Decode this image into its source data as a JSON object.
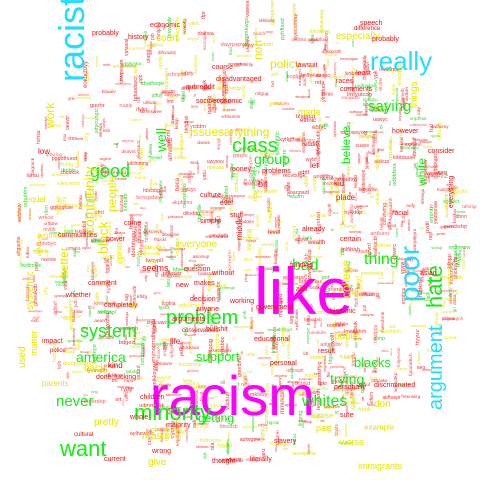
{
  "colors": {
    "magenta": "#ff00ff",
    "cyan": "#22ddff",
    "green": "#11ee11",
    "yellow": "#e6e600",
    "red": "#ee1111"
  },
  "words": [
    {
      "text": "racism",
      "color": "magenta"
    },
    {
      "text": "like",
      "color": "magenta"
    },
    {
      "text": "racist",
      "color": "cyan"
    },
    {
      "text": "really",
      "color": "cyan"
    },
    {
      "text": "poor",
      "color": "cyan"
    },
    {
      "text": "argument",
      "color": "cyan"
    },
    {
      "text": "minority",
      "color": "green"
    },
    {
      "text": "problem",
      "color": "green"
    },
    {
      "text": "want",
      "color": "green"
    },
    {
      "text": "hate",
      "color": "green"
    },
    {
      "text": "system",
      "color": "green"
    },
    {
      "text": "class",
      "color": "green"
    },
    {
      "text": "whites",
      "color": "green"
    },
    {
      "text": "good",
      "color": "green"
    },
    {
      "text": "bad",
      "color": "green"
    },
    {
      "text": "never",
      "color": "green"
    },
    {
      "text": "america",
      "color": "green"
    },
    {
      "text": "well",
      "color": "green"
    },
    {
      "text": "thing",
      "color": "green"
    },
    {
      "text": "support",
      "color": "green"
    },
    {
      "text": "saying",
      "color": "green"
    },
    {
      "text": "trying",
      "color": "green"
    },
    {
      "text": "group",
      "color": "green"
    },
    {
      "text": "getting",
      "color": "green"
    },
    {
      "text": "blacks",
      "color": "green"
    },
    {
      "text": "believe",
      "color": "green"
    },
    {
      "text": "white",
      "color": "green"
    },
    {
      "text": "community",
      "color": "yellow"
    },
    {
      "text": "black",
      "color": "yellow"
    },
    {
      "text": "work",
      "color": "yellow"
    },
    {
      "text": "people",
      "color": "yellow"
    },
    {
      "text": "better",
      "color": "yellow"
    },
    {
      "text": "policy",
      "color": "yellow"
    },
    {
      "text": "anything",
      "color": "yellow"
    },
    {
      "text": "college",
      "color": "yellow"
    },
    {
      "text": "issues",
      "color": "yellow"
    },
    {
      "text": "non",
      "color": "yellow"
    },
    {
      "text": "public",
      "color": "yellow"
    },
    {
      "text": "systemic",
      "color": "yellow"
    },
    {
      "text": "used",
      "color": "yellow"
    },
    {
      "text": "pretty",
      "color": "yellow"
    },
    {
      "text": "give",
      "color": "yellow"
    },
    {
      "text": "reason",
      "color": "yellow"
    },
    {
      "text": "things",
      "color": "yellow"
    },
    {
      "text": "everyone",
      "color": "yellow"
    },
    {
      "text": "back",
      "color": "yellow"
    },
    {
      "text": "women",
      "color": "yellow"
    },
    {
      "text": "equal",
      "color": "yellow"
    },
    {
      "text": "parents",
      "color": "yellow"
    },
    {
      "text": "court",
      "color": "yellow"
    },
    {
      "text": "especially",
      "color": "yellow"
    },
    {
      "text": "worse",
      "color": "yellow"
    },
    {
      "text": "immigrants",
      "color": "yellow"
    },
    {
      "text": "example",
      "color": "yellow"
    },
    {
      "text": "opinions",
      "color": "yellow"
    },
    {
      "text": "part",
      "color": "yellow"
    },
    {
      "text": "made",
      "color": "yellow"
    },
    {
      "text": "mean",
      "color": "yellow"
    },
    {
      "text": "don",
      "color": "yellow"
    },
    {
      "text": "sense",
      "color": "yellow"
    },
    {
      "text": "matter",
      "color": "yellow"
    },
    {
      "text": "kind",
      "color": "red"
    },
    {
      "text": "life",
      "color": "red"
    },
    {
      "text": "seems",
      "color": "red"
    },
    {
      "text": "bit",
      "color": "red"
    },
    {
      "text": "low",
      "color": "red"
    },
    {
      "text": "economic",
      "color": "red"
    },
    {
      "text": "history",
      "color": "red"
    },
    {
      "text": "money",
      "color": "red"
    },
    {
      "text": "government",
      "color": "red"
    },
    {
      "text": "comments",
      "color": "red"
    },
    {
      "text": "however",
      "color": "red"
    },
    {
      "text": "culture",
      "color": "red"
    },
    {
      "text": "simply",
      "color": "red"
    },
    {
      "text": "arguments",
      "color": "red"
    },
    {
      "text": "decision",
      "color": "red"
    },
    {
      "text": "makes",
      "color": "red"
    },
    {
      "text": "new",
      "color": "red"
    },
    {
      "text": "middle",
      "color": "red"
    },
    {
      "text": "anyone",
      "color": "red"
    },
    {
      "text": "without",
      "color": "red"
    },
    {
      "text": "already",
      "color": "red"
    },
    {
      "text": "place",
      "color": "red"
    },
    {
      "text": "let",
      "color": "red"
    },
    {
      "text": "kid",
      "color": "red"
    },
    {
      "text": "races",
      "color": "red"
    },
    {
      "text": "least",
      "color": "red"
    },
    {
      "text": "lawsuit",
      "color": "red"
    },
    {
      "text": "speech",
      "color": "red"
    },
    {
      "text": "problems",
      "color": "red"
    },
    {
      "text": "disadvantaged",
      "color": "red"
    },
    {
      "text": "subreddit",
      "color": "red"
    },
    {
      "text": "socioeconomic",
      "color": "red"
    },
    {
      "text": "completely",
      "color": "red"
    },
    {
      "text": "communities",
      "color": "red"
    },
    {
      "text": "comment",
      "color": "red"
    },
    {
      "text": "personally",
      "color": "red"
    },
    {
      "text": "thought",
      "color": "red"
    },
    {
      "text": "slavery",
      "color": "red"
    },
    {
      "text": "literally",
      "color": "red"
    },
    {
      "text": "sure",
      "color": "red"
    },
    {
      "text": "fucking",
      "color": "red"
    },
    {
      "text": "done",
      "color": "red"
    },
    {
      "text": "impact",
      "color": "red"
    },
    {
      "text": "whether",
      "color": "red"
    },
    {
      "text": "power",
      "color": "red"
    },
    {
      "text": "come",
      "color": "red"
    },
    {
      "text": "working",
      "color": "red"
    },
    {
      "text": "difference",
      "color": "red"
    },
    {
      "text": "personal",
      "color": "red"
    },
    {
      "text": "funding",
      "color": "red"
    },
    {
      "text": "majority",
      "color": "red"
    },
    {
      "text": "consider",
      "color": "red"
    },
    {
      "text": "current",
      "color": "red"
    },
    {
      "text": "wrong",
      "color": "red"
    },
    {
      "text": "hispanic",
      "color": "red"
    },
    {
      "text": "discriminated",
      "color": "red"
    },
    {
      "text": "probably",
      "color": "red"
    },
    {
      "text": "course",
      "color": "red"
    },
    {
      "text": "children",
      "color": "red"
    },
    {
      "text": "result",
      "color": "red"
    },
    {
      "text": "educational",
      "color": "red"
    },
    {
      "text": "certain",
      "color": "red"
    },
    {
      "text": "whole",
      "color": "red"
    },
    {
      "text": "everything",
      "color": "red"
    },
    {
      "text": "reddit",
      "color": "red"
    },
    {
      "text": "asian",
      "color": "red"
    },
    {
      "text": "anti",
      "color": "red"
    },
    {
      "text": "racial",
      "color": "red"
    },
    {
      "text": "ever",
      "color": "red"
    },
    {
      "text": "stuff",
      "color": "red"
    },
    {
      "text": "question",
      "color": "red"
    },
    {
      "text": "conservatives",
      "color": "red"
    },
    {
      "text": "bullshit",
      "color": "red"
    },
    {
      "text": "probably",
      "color": "red"
    },
    {
      "text": "ethnic",
      "color": "red"
    },
    {
      "text": "cultural",
      "color": "red"
    },
    {
      "text": "police",
      "color": "red"
    },
    {
      "text": "wealth",
      "color": "red"
    },
    {
      "text": "level",
      "color": "red"
    }
  ]
}
